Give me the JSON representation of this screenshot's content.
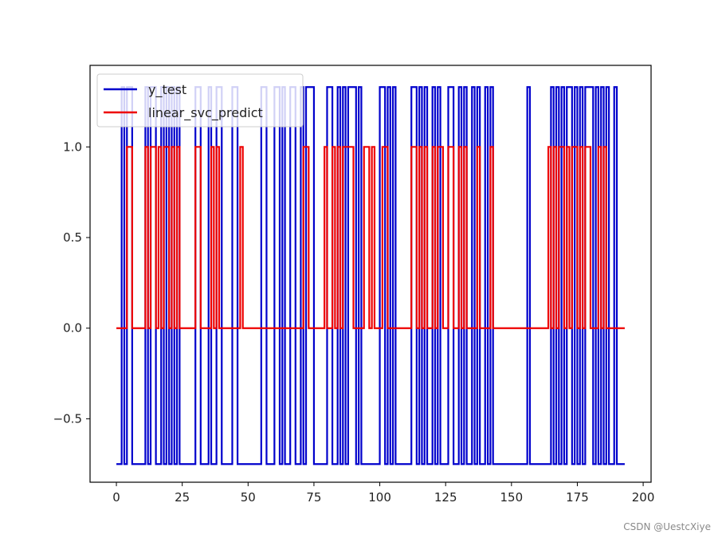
{
  "chart_data": {
    "type": "line",
    "title": "",
    "xlabel": "",
    "ylabel": "",
    "xlim": [
      -10,
      203
    ],
    "ylim": [
      -0.85,
      1.45
    ],
    "x_ticks": [
      0,
      25,
      50,
      75,
      100,
      125,
      150,
      175,
      200
    ],
    "y_ticks": [
      -0.5,
      0.0,
      0.5,
      1.0
    ],
    "y_tick_format": "fixed1",
    "legend_position": "upper-left",
    "drawstyle": "steps-post",
    "grid": false,
    "series": [
      {
        "name": "y_test",
        "color": "#0000cc",
        "segments": [
          [
            0,
            -0.75
          ],
          [
            2,
            1.33
          ],
          [
            3,
            -0.75
          ],
          [
            4,
            1.33
          ],
          [
            6,
            -0.75
          ],
          [
            11,
            1.33
          ],
          [
            12,
            -0.75
          ],
          [
            13,
            1.33
          ],
          [
            15,
            -0.75
          ],
          [
            17,
            1.33
          ],
          [
            18,
            -0.75
          ],
          [
            19,
            1.33
          ],
          [
            20,
            -0.75
          ],
          [
            21,
            1.33
          ],
          [
            22,
            -0.75
          ],
          [
            23,
            1.33
          ],
          [
            24,
            -0.75
          ],
          [
            30,
            1.33
          ],
          [
            32,
            -0.75
          ],
          [
            35,
            1.33
          ],
          [
            36,
            -0.75
          ],
          [
            38,
            1.33
          ],
          [
            40,
            -0.75
          ],
          [
            44,
            1.33
          ],
          [
            46,
            -0.75
          ],
          [
            55,
            1.33
          ],
          [
            57,
            -0.75
          ],
          [
            60,
            1.33
          ],
          [
            62,
            -0.75
          ],
          [
            63,
            1.33
          ],
          [
            64,
            -0.75
          ],
          [
            66,
            1.33
          ],
          [
            68,
            -0.75
          ],
          [
            70,
            1.33
          ],
          [
            71,
            -0.75
          ],
          [
            72,
            1.33
          ],
          [
            75,
            -0.75
          ],
          [
            80,
            1.33
          ],
          [
            82,
            -0.75
          ],
          [
            84,
            1.33
          ],
          [
            85,
            -0.75
          ],
          [
            86,
            1.33
          ],
          [
            87,
            -0.75
          ],
          [
            88,
            1.33
          ],
          [
            91,
            -0.75
          ],
          [
            92,
            1.33
          ],
          [
            93,
            -0.75
          ],
          [
            100,
            1.33
          ],
          [
            102,
            -0.75
          ],
          [
            103,
            1.33
          ],
          [
            104,
            -0.75
          ],
          [
            105,
            1.33
          ],
          [
            106,
            -0.75
          ],
          [
            112,
            1.33
          ],
          [
            114,
            -0.75
          ],
          [
            115,
            1.33
          ],
          [
            116,
            -0.75
          ],
          [
            117,
            1.33
          ],
          [
            118,
            -0.75
          ],
          [
            120,
            1.33
          ],
          [
            121,
            -0.75
          ],
          [
            122,
            1.33
          ],
          [
            123,
            -0.75
          ],
          [
            126,
            1.33
          ],
          [
            128,
            -0.75
          ],
          [
            130,
            1.33
          ],
          [
            131,
            -0.75
          ],
          [
            132,
            1.33
          ],
          [
            133,
            -0.75
          ],
          [
            135,
            1.33
          ],
          [
            136,
            -0.75
          ],
          [
            137,
            1.33
          ],
          [
            138,
            -0.75
          ],
          [
            140,
            1.33
          ],
          [
            141,
            -0.75
          ],
          [
            142,
            1.33
          ],
          [
            143,
            -0.75
          ],
          [
            156,
            1.33
          ],
          [
            157,
            -0.75
          ],
          [
            165,
            1.33
          ],
          [
            166,
            -0.75
          ],
          [
            167,
            1.33
          ],
          [
            168,
            -0.75
          ],
          [
            169,
            1.33
          ],
          [
            170,
            -0.75
          ],
          [
            171,
            1.33
          ],
          [
            173,
            -0.75
          ],
          [
            174,
            1.33
          ],
          [
            175,
            -0.75
          ],
          [
            176,
            1.33
          ],
          [
            177,
            -0.75
          ],
          [
            178,
            1.33
          ],
          [
            181,
            -0.75
          ],
          [
            182,
            1.33
          ],
          [
            183,
            -0.75
          ],
          [
            184,
            1.33
          ],
          [
            185,
            -0.75
          ],
          [
            186,
            1.33
          ],
          [
            187,
            -0.75
          ],
          [
            189,
            1.33
          ],
          [
            190,
            -0.75
          ],
          [
            193,
            -0.75
          ]
        ]
      },
      {
        "name": "linear_svc_predict",
        "color": "#ee0000",
        "segments": [
          [
            0,
            0
          ],
          [
            4,
            1
          ],
          [
            6,
            0
          ],
          [
            11,
            1
          ],
          [
            12,
            0
          ],
          [
            13,
            1
          ],
          [
            15,
            0
          ],
          [
            16,
            1
          ],
          [
            17,
            0
          ],
          [
            18,
            1
          ],
          [
            20,
            0
          ],
          [
            21,
            1
          ],
          [
            22,
            0
          ],
          [
            23,
            1
          ],
          [
            24,
            0
          ],
          [
            30,
            1
          ],
          [
            32,
            0
          ],
          [
            36,
            1
          ],
          [
            37,
            0
          ],
          [
            38,
            1
          ],
          [
            39,
            0
          ],
          [
            47,
            1
          ],
          [
            48,
            0
          ],
          [
            71,
            1
          ],
          [
            73,
            0
          ],
          [
            79,
            1
          ],
          [
            80,
            0
          ],
          [
            82,
            1
          ],
          [
            83,
            0
          ],
          [
            84,
            1
          ],
          [
            85,
            0
          ],
          [
            86,
            1
          ],
          [
            90,
            0
          ],
          [
            94,
            1
          ],
          [
            96,
            0
          ],
          [
            97,
            1
          ],
          [
            98,
            0
          ],
          [
            101,
            1
          ],
          [
            103,
            0
          ],
          [
            112,
            1
          ],
          [
            114,
            0
          ],
          [
            115,
            1
          ],
          [
            116,
            0
          ],
          [
            117,
            1
          ],
          [
            118,
            0
          ],
          [
            120,
            1
          ],
          [
            121,
            0
          ],
          [
            122,
            1
          ],
          [
            124,
            0
          ],
          [
            126,
            1
          ],
          [
            128,
            0
          ],
          [
            130,
            1
          ],
          [
            131,
            0
          ],
          [
            132,
            1
          ],
          [
            133,
            0
          ],
          [
            137,
            1
          ],
          [
            138,
            0
          ],
          [
            142,
            1
          ],
          [
            143,
            0
          ],
          [
            164,
            1
          ],
          [
            165,
            0
          ],
          [
            166,
            1
          ],
          [
            167,
            0
          ],
          [
            168,
            1
          ],
          [
            170,
            0
          ],
          [
            171,
            1
          ],
          [
            172,
            0
          ],
          [
            173,
            1
          ],
          [
            175,
            0
          ],
          [
            176,
            1
          ],
          [
            177,
            0
          ],
          [
            178,
            1
          ],
          [
            180,
            0
          ],
          [
            183,
            1
          ],
          [
            184,
            0
          ],
          [
            185,
            1
          ],
          [
            186,
            0
          ],
          [
            193,
            0
          ]
        ]
      }
    ]
  },
  "watermark": "CSDN @UestcXiye"
}
